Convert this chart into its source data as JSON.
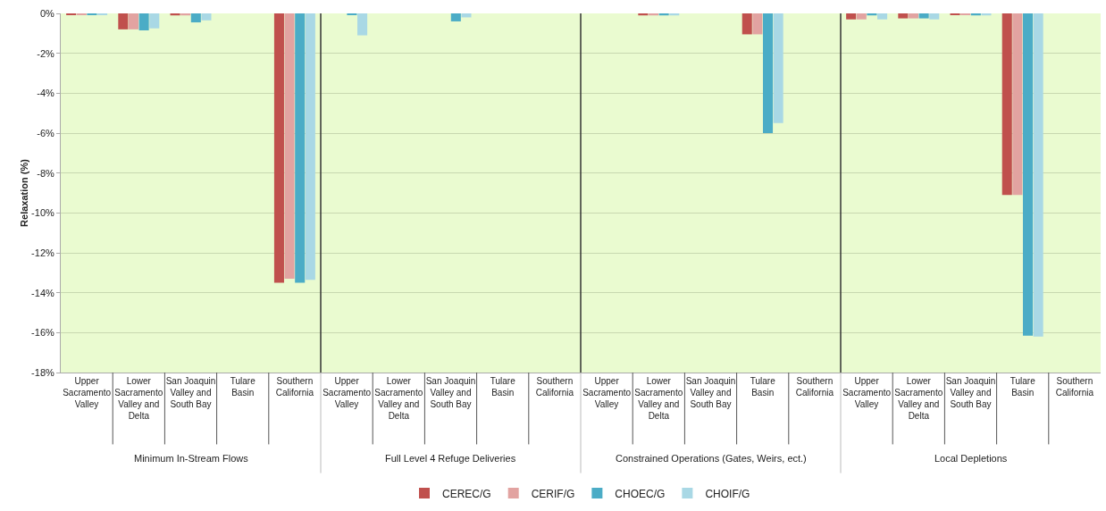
{
  "chart_data": {
    "type": "bar",
    "ylabel": "Relaxation (%)",
    "categories": [
      "Upper Sacramento Valley",
      "Lower Sacramento Valley and Delta",
      "San Joaquin Valley and South Bay",
      "Tulare Basin",
      "Southern California",
      "Upper Sacramento Valley",
      "Lower Sacramento Valley and Delta",
      "San Joaquin Valley and South Bay",
      "Tulare Basin",
      "Southern California",
      "Upper Sacramento Valley",
      "Lower Sacramento Valley and Delta",
      "San Joaquin Valley and South Bay",
      "Tulare Basin",
      "Southern California",
      "Upper Sacramento Valley",
      "Lower Sacramento Valley and Delta",
      "San Joaquin Valley and South Bay",
      "Tulare Basin",
      "Southern California"
    ],
    "annotations": [
      "Minimum In-Stream Flows",
      "Full Level 4 Refuge Deliveries",
      "Constrained Operations (Gates, Weirs, ect.)",
      "Local Depletions"
    ],
    "series": [
      {
        "name": "CEREC/G",
        "color": "#c0504d",
        "values": [
          -0.05,
          -0.8,
          -0.1,
          0,
          -13.5,
          0,
          0,
          0,
          0,
          0,
          0,
          -0.1,
          0,
          -1.05,
          0,
          -0.3,
          -0.25,
          -0.05,
          -9.1,
          0
        ]
      },
      {
        "name": "CERIF/G",
        "color": "#e2a3a1",
        "values": [
          -0.05,
          -0.8,
          -0.1,
          0,
          -13.3,
          0,
          0,
          0,
          0,
          0,
          0,
          -0.1,
          0,
          -1.05,
          0,
          -0.3,
          -0.25,
          -0.05,
          -9.1,
          0
        ]
      },
      {
        "name": "CHOEC/G",
        "color": "#4bacc6",
        "values": [
          -0.05,
          -0.85,
          -0.45,
          0,
          -13.5,
          -0.05,
          0,
          -0.4,
          0,
          0,
          0,
          -0.1,
          0,
          -6.0,
          0,
          -0.1,
          -0.25,
          -0.1,
          -16.15,
          0
        ]
      },
      {
        "name": "CHOIF/G",
        "color": "#a9d8e5",
        "values": [
          -0.05,
          -0.75,
          -0.35,
          0,
          -13.35,
          -1.1,
          0,
          -0.2,
          0,
          0,
          0,
          -0.1,
          0,
          -5.5,
          0,
          -0.3,
          -0.3,
          -0.1,
          -16.2,
          0
        ]
      }
    ],
    "ylim": [
      -18,
      0
    ],
    "yticks": [
      {
        "value": 0,
        "label": "0%"
      },
      {
        "value": -2,
        "label": "-2%"
      },
      {
        "value": -4,
        "label": "-4%"
      },
      {
        "value": -6,
        "label": "-6%"
      },
      {
        "value": -8,
        "label": "-8%"
      },
      {
        "value": -10,
        "label": "-10%"
      },
      {
        "value": -12,
        "label": "-12%"
      },
      {
        "value": -14,
        "label": "-14%"
      },
      {
        "value": -16,
        "label": "-16%"
      },
      {
        "value": -18,
        "label": "-18%"
      }
    ],
    "grid": "y",
    "legend": "bottom"
  }
}
